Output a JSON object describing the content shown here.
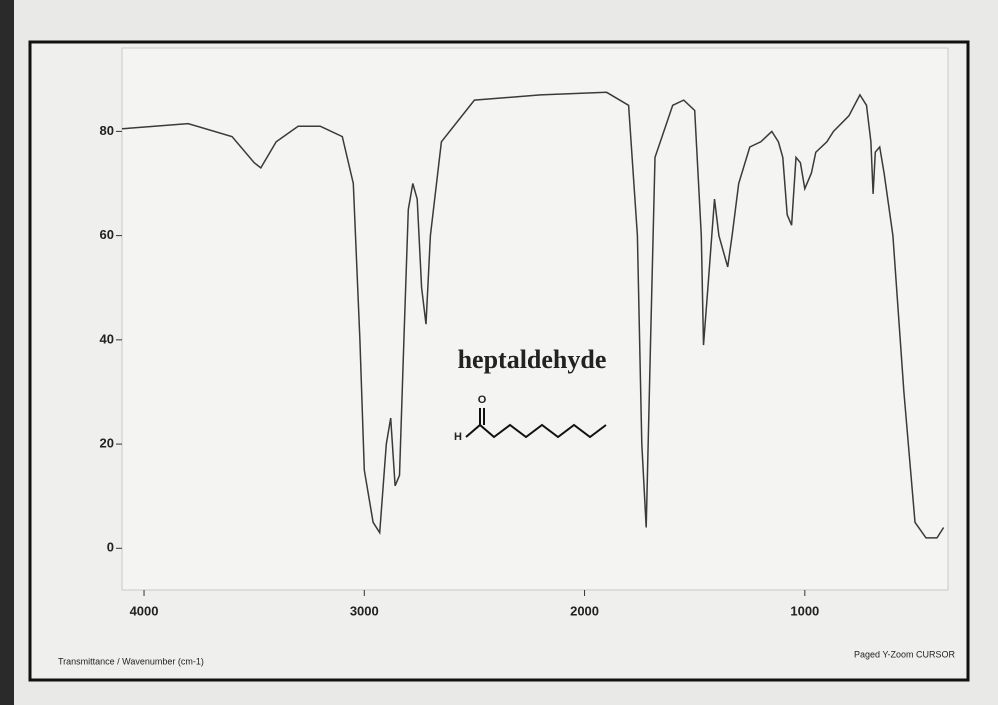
{
  "chart_data": {
    "type": "line",
    "annotation": "heptaldehyde",
    "structure_labels": [
      "O",
      "H"
    ],
    "x_label": "Transmittance / Wavenumber (cm-1)",
    "status_text": "Paged  Y-Zoom CURSOR",
    "x": [
      4100,
      3800,
      3600,
      3500,
      3470,
      3400,
      3300,
      3200,
      3100,
      3050,
      3020,
      3000,
      2960,
      2930,
      2900,
      2880,
      2860,
      2840,
      2820,
      2800,
      2780,
      2760,
      2740,
      2720,
      2700,
      2650,
      2500,
      2200,
      1900,
      1800,
      1760,
      1740,
      1720,
      1700,
      1680,
      1600,
      1550,
      1500,
      1470,
      1460,
      1440,
      1410,
      1390,
      1370,
      1350,
      1330,
      1300,
      1250,
      1200,
      1150,
      1120,
      1100,
      1080,
      1060,
      1040,
      1020,
      1000,
      970,
      950,
      900,
      870,
      800,
      750,
      720,
      700,
      690,
      680,
      660,
      640,
      600,
      550,
      500,
      450,
      400,
      370
    ],
    "series": [
      {
        "color": "#3a3a3a",
        "values": [
          80.5,
          81.5,
          79,
          74,
          73,
          78,
          81,
          81,
          79,
          70,
          40,
          15,
          5,
          3,
          20,
          25,
          12,
          14,
          40,
          65,
          70,
          67,
          50,
          43,
          60,
          78,
          86,
          87,
          87.5,
          85,
          60,
          20,
          4,
          40,
          75,
          85,
          86,
          84,
          60,
          39,
          50,
          67,
          60,
          57,
          54,
          60,
          70,
          77,
          78,
          80,
          78,
          75,
          64,
          62,
          75,
          74,
          69,
          72,
          76,
          78,
          80,
          83,
          87,
          85,
          78,
          68,
          76,
          77,
          72,
          60,
          30,
          5,
          2,
          2,
          4
        ]
      }
    ],
    "xlim": [
      4100,
      350
    ],
    "ylim": [
      -8,
      96
    ],
    "xticks": [
      4000,
      3000,
      2000,
      1000
    ],
    "yticks": [
      0,
      20,
      40,
      60,
      80
    ]
  }
}
